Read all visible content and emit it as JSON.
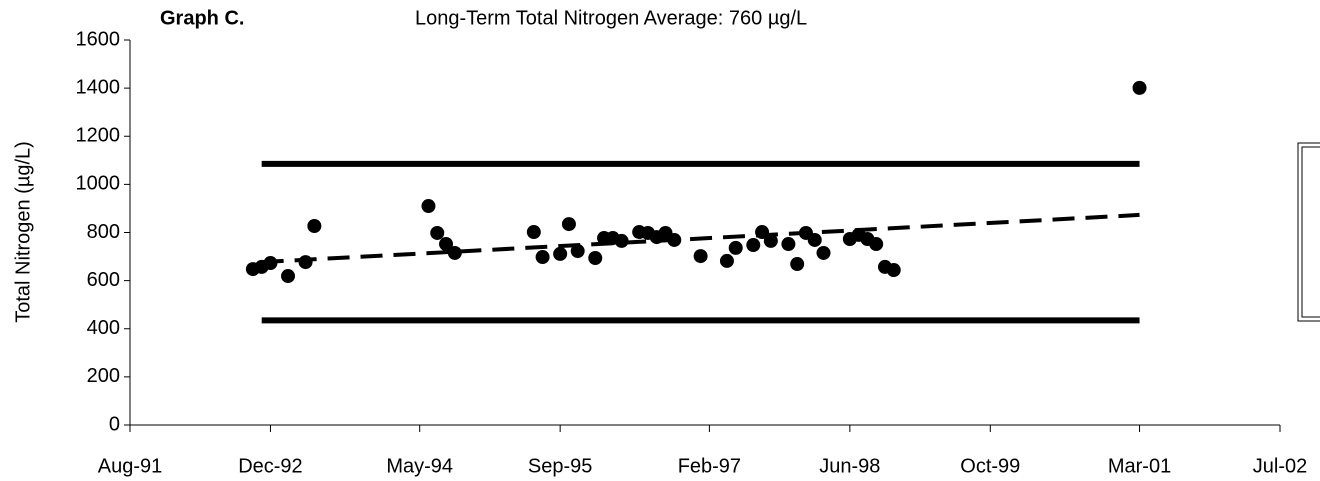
{
  "chart_data": {
    "type": "scatter",
    "title": "Graph C.",
    "subtitle": "Long-Term Total Nitrogen Average:  760 µg/L",
    "y_label": "Total Nitrogen (µg/L)",
    "xlim": [
      "1991-08",
      "2002-07"
    ],
    "xticks": [
      {
        "value": "1991-08",
        "label": "Aug-91"
      },
      {
        "value": "1992-12",
        "label": "Dec-92"
      },
      {
        "value": "1994-05",
        "label": "May-94"
      },
      {
        "value": "1995-09",
        "label": "Sep-95"
      },
      {
        "value": "1997-02",
        "label": "Feb-97"
      },
      {
        "value": "1998-06",
        "label": "Jun-98"
      },
      {
        "value": "1999-10",
        "label": "Oct-99"
      },
      {
        "value": "2001-03",
        "label": "Mar-01"
      },
      {
        "value": "2002-07",
        "label": "Jul-02"
      }
    ],
    "ylim": [
      0,
      1600
    ],
    "yticks": [
      0,
      200,
      400,
      600,
      800,
      1000,
      1200,
      1400,
      1600
    ],
    "series": [
      {
        "style": "points",
        "color": "#000000",
        "x": [
          "1992-10",
          "1992-11",
          "1992-12",
          "1993-02",
          "1993-04",
          "1993-05",
          "1994-06",
          "1994-07",
          "1994-08",
          "1994-09",
          "1995-06",
          "1995-07",
          "1995-09",
          "1995-10",
          "1995-11",
          "1996-01",
          "1996-02",
          "1996-03",
          "1996-04",
          "1996-06",
          "1996-07",
          "1996-08",
          "1996-09",
          "1996-10",
          "1997-01",
          "1997-04",
          "1997-05",
          "1997-07",
          "1997-08",
          "1997-09",
          "1997-11",
          "1997-12",
          "1998-01",
          "1998-02",
          "1998-03",
          "1998-06",
          "1998-07",
          "1998-08",
          "1998-09",
          "1998-10",
          "1998-11",
          "2001-03"
        ],
        "values": [
          648,
          657,
          673,
          619,
          677,
          827,
          910,
          798,
          752,
          715,
          802,
          698,
          711,
          835,
          723,
          694,
          777,
          777,
          765,
          802,
          798,
          781,
          798,
          769,
          702,
          682,
          736,
          748,
          802,
          765,
          752,
          669,
          798,
          769,
          715,
          773,
          790,
          773,
          752,
          657,
          644,
          1401
        ]
      },
      {
        "style": "solid",
        "color": "#000000",
        "x": [
          "1992-11",
          "2001-03"
        ],
        "values": [
          1085,
          1085
        ]
      },
      {
        "style": "solid",
        "color": "#000000",
        "x": [
          "1992-11",
          "2001-03"
        ],
        "values": [
          435,
          435
        ]
      },
      {
        "style": "dashed",
        "color": "#000000",
        "x": [
          "1992-11",
          "2001-03"
        ],
        "values": [
          677,
          873
        ]
      }
    ]
  }
}
